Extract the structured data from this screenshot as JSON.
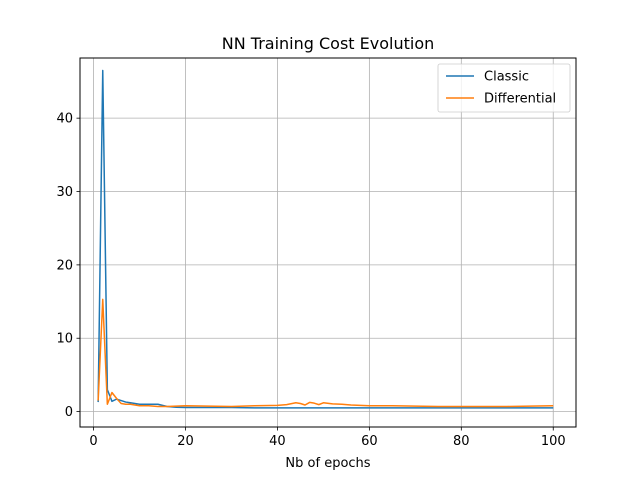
{
  "chart_data": {
    "type": "line",
    "title": "NN Training Cost Evolution",
    "xlabel": "Nb of epochs",
    "ylabel": "",
    "xlim": [
      -2.95,
      104.95
    ],
    "ylim": [
      -2.1,
      48.2
    ],
    "xticks": [
      0,
      20,
      40,
      60,
      80,
      100
    ],
    "yticks": [
      0,
      10,
      20,
      30,
      40
    ],
    "grid": true,
    "legend_position": "top-right",
    "series": [
      {
        "name": "Classic",
        "color": "#1f77b4",
        "x": [
          1,
          2,
          3,
          4,
          5,
          6,
          7,
          8,
          9,
          10,
          12,
          14,
          16,
          18,
          20,
          25,
          30,
          35,
          40,
          45,
          50,
          55,
          60,
          65,
          70,
          75,
          80,
          85,
          90,
          95,
          100
        ],
        "y": [
          1.3,
          46.5,
          3.0,
          1.4,
          1.7,
          1.5,
          1.3,
          1.2,
          1.1,
          1.0,
          1.0,
          1.0,
          0.7,
          0.6,
          0.55,
          0.55,
          0.55,
          0.5,
          0.5,
          0.5,
          0.5,
          0.5,
          0.5,
          0.5,
          0.5,
          0.5,
          0.5,
          0.5,
          0.5,
          0.5,
          0.5
        ]
      },
      {
        "name": "Differential",
        "color": "#ff7f0e",
        "x": [
          1,
          2,
          3,
          4,
          5,
          6,
          7,
          8,
          9,
          10,
          12,
          14,
          16,
          18,
          20,
          25,
          30,
          35,
          40,
          42,
          44,
          45,
          46,
          47,
          48,
          49,
          50,
          52,
          54,
          56,
          58,
          60,
          65,
          70,
          75,
          80,
          85,
          90,
          95,
          100
        ],
        "y": [
          1.5,
          15.3,
          1.0,
          2.6,
          1.8,
          1.1,
          1.0,
          1.0,
          0.9,
          0.8,
          0.8,
          0.7,
          0.7,
          0.75,
          0.8,
          0.75,
          0.7,
          0.8,
          0.85,
          0.95,
          1.2,
          1.1,
          0.9,
          1.25,
          1.15,
          0.95,
          1.2,
          1.05,
          1.0,
          0.9,
          0.85,
          0.8,
          0.8,
          0.75,
          0.7,
          0.7,
          0.7,
          0.7,
          0.75,
          0.8
        ]
      }
    ]
  }
}
